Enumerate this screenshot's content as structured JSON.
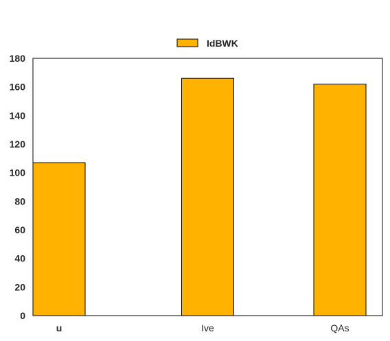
{
  "chart_data": {
    "type": "bar",
    "categories": [
      "u",
      "Ive",
      "QAs"
    ],
    "series": [
      {
        "name": "IdBWK",
        "values": [
          107,
          166,
          162
        ],
        "color": "#FFB300"
      }
    ],
    "ylim": [
      0,
      180
    ],
    "yticks": [
      0,
      20,
      40,
      60,
      80,
      100,
      120,
      140,
      160,
      180
    ],
    "title": "",
    "xlabel": "",
    "ylabel": "",
    "grid": false,
    "legend_position": "top-center"
  }
}
